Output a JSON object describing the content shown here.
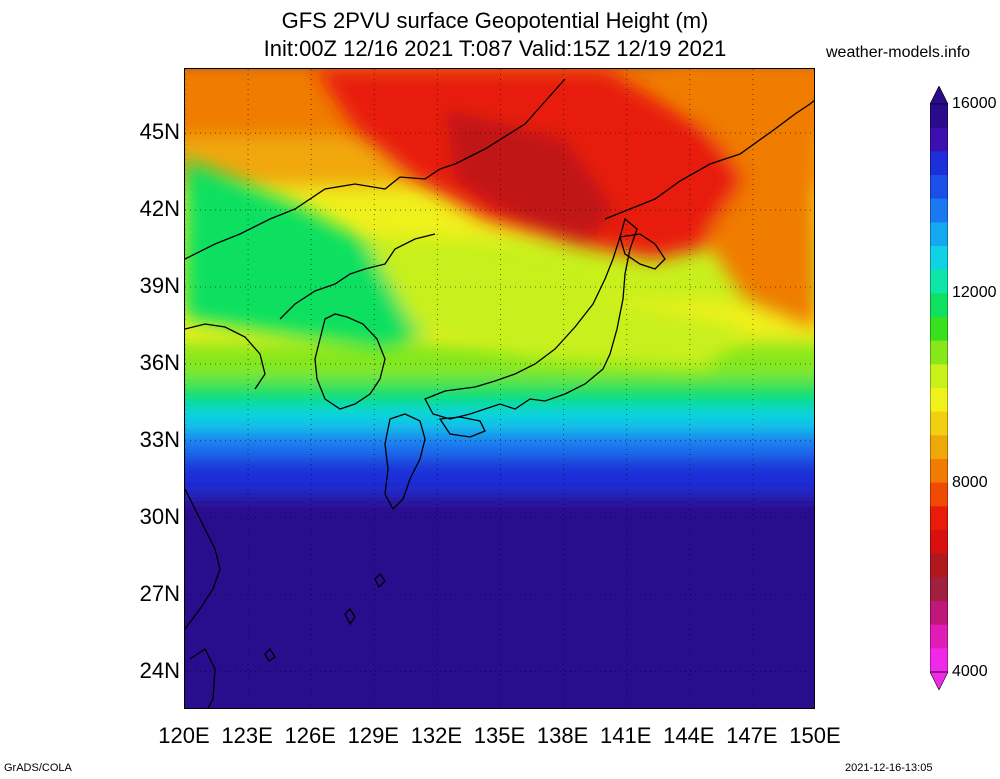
{
  "title_line1": "GFS 2PVU surface Geopotential Height (m)",
  "title_line2": "Init:00Z 12/16 2021 T:087 Valid:15Z 12/19 2021",
  "site": "weather-models.info",
  "lat_labels": [
    "45N",
    "42N",
    "39N",
    "36N",
    "33N",
    "30N",
    "27N",
    "24N"
  ],
  "lon_labels": [
    "120E",
    "123E",
    "126E",
    "129E",
    "132E",
    "135E",
    "138E",
    "141E",
    "144E",
    "147E",
    "150E"
  ],
  "colorbar": {
    "labels": [
      "16000",
      "12000",
      "8000",
      "4000"
    ],
    "colors": [
      "#2a0b8c",
      "#3b0fb0",
      "#1c2fd8",
      "#1b4fe8",
      "#1a78f0",
      "#14a8f0",
      "#10d2e4",
      "#0ee6a8",
      "#10e060",
      "#38e020",
      "#86e81a",
      "#c8f01a",
      "#f0f01a",
      "#f0d010",
      "#f0a808",
      "#f07c04",
      "#f04a04",
      "#e81c08",
      "#d81010",
      "#b01820",
      "#a02040",
      "#c01878",
      "#e01cb8",
      "#f028e8"
    ],
    "range": [
      4000,
      16000
    ]
  },
  "map": {
    "lon_range": [
      120,
      150
    ],
    "lat_range": [
      22.5,
      47.5
    ],
    "projection": "lat-lon",
    "grid": true,
    "field_bands": [
      {
        "lat": 47.5,
        "color": "#f07c04"
      },
      {
        "lat": 44.5,
        "color": "#f0a808"
      },
      {
        "lat": 42.5,
        "color": "#f0f01a"
      },
      {
        "lat": 40.5,
        "color": "#c8f01a"
      },
      {
        "lat": 38.0,
        "color": "#f0f01a"
      },
      {
        "lat": 36.5,
        "color": "#86e81a"
      },
      {
        "lat": 35.0,
        "color": "#10e060"
      },
      {
        "lat": 34.0,
        "color": "#10d2e4"
      },
      {
        "lat": 33.0,
        "color": "#1a78f0"
      },
      {
        "lat": 32.0,
        "color": "#1c2fd8"
      },
      {
        "lat": 30.5,
        "color": "#2a0b8c"
      }
    ]
  },
  "footer_left": "GrADS/COLA",
  "footer_right": "2021-12-16-13:05"
}
